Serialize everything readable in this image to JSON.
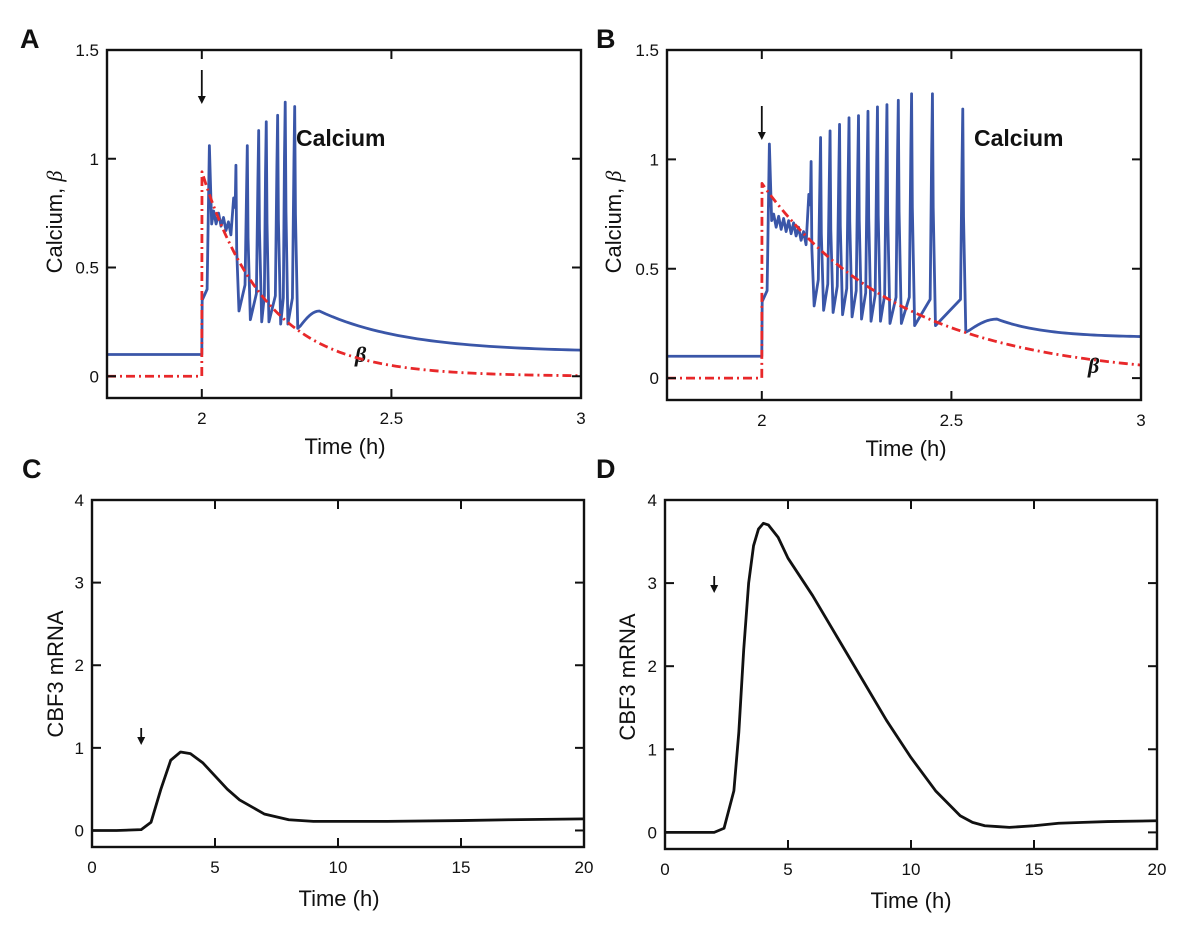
{
  "figure": {
    "panels": [
      {
        "letter": "A",
        "xlabel": "Time (h)",
        "ylabel": "Calcium, ",
        "ylabel_symbol": "β",
        "series_label": "Calcium",
        "beta_label": "β"
      },
      {
        "letter": "B",
        "xlabel": "Time (h)",
        "ylabel": "Calcium, ",
        "ylabel_symbol": "β",
        "series_label": "Calcium",
        "beta_label": "β"
      },
      {
        "letter": "C",
        "xlabel": "Time (h)",
        "ylabel": "CBF3 mRNA"
      },
      {
        "letter": "D",
        "xlabel": "Time (h)",
        "ylabel": "CBF3 mRNA"
      }
    ],
    "colors": {
      "calcium": "#3a56a8",
      "beta": "#e8282a",
      "mrna": "#111111",
      "axis": "#111111"
    }
  },
  "chart_data": [
    {
      "type": "line",
      "panel": "A",
      "xlabel": "Time (h)",
      "ylabel": "Calcium, β",
      "xlim": [
        1.75,
        3
      ],
      "ylim": [
        -0.1,
        1.5
      ],
      "xticks": [
        2,
        2.5,
        3
      ],
      "xtick_labels": [
        "2",
        "2.5",
        "3"
      ],
      "yticks": [
        0,
        0.5,
        1,
        1.5
      ],
      "ytick_labels": [
        "0",
        "0.5",
        "1",
        "1.5"
      ],
      "stimulus_time": 2.0,
      "annotations": [
        "Calcium",
        "β"
      ],
      "series": [
        {
          "name": "Calcium",
          "style": "solid",
          "baseline": 0.1,
          "onset": 2.0,
          "onset_value": 0.35,
          "spikes": [
            {
              "t": 2.02,
              "peak": 1.06,
              "trough": 0.7
            },
            {
              "t": 2.09,
              "peak": 0.97,
              "trough": 0.3
            },
            {
              "t": 2.12,
              "peak": 1.06,
              "trough": 0.26
            },
            {
              "t": 2.15,
              "peak": 1.13,
              "trough": 0.25
            },
            {
              "t": 2.17,
              "peak": 1.17,
              "trough": 0.25
            },
            {
              "t": 2.2,
              "peak": 1.2,
              "trough": 0.24
            },
            {
              "t": 2.22,
              "peak": 1.26,
              "trough": 0.24
            },
            {
              "t": 2.245,
              "peak": 1.24,
              "trough": 0.22
            }
          ],
          "plateau_wiggles": [
            0.73,
            0.72,
            0.7,
            0.68
          ],
          "post_bump": {
            "t": 2.31,
            "value": 0.3
          },
          "tail_end": 0.12
        },
        {
          "name": "β",
          "style": "dash-dot",
          "baseline": 0.0,
          "onset": 2.0,
          "peak": 0.94,
          "decay_tau": 0.17
        }
      ]
    },
    {
      "type": "line",
      "panel": "B",
      "xlabel": "Time (h)",
      "ylabel": "Calcium, β",
      "xlim": [
        1.75,
        3
      ],
      "ylim": [
        -0.1,
        1.5
      ],
      "xticks": [
        2,
        2.5,
        3
      ],
      "xtick_labels": [
        "2",
        "2.5",
        "3"
      ],
      "yticks": [
        0,
        0.5,
        1,
        1.5
      ],
      "ytick_labels": [
        "0",
        "0.5",
        "1",
        "1.5"
      ],
      "stimulus_time": 2.0,
      "annotations": [
        "Calcium",
        "β"
      ],
      "series": [
        {
          "name": "Calcium",
          "style": "solid",
          "baseline": 0.1,
          "onset": 2.0,
          "onset_value": 0.35,
          "spikes": [
            {
              "t": 2.02,
              "peak": 1.07,
              "trough": 0.72
            },
            {
              "t": 2.13,
              "peak": 0.99,
              "trough": 0.33
            },
            {
              "t": 2.155,
              "peak": 1.1,
              "trough": 0.31
            },
            {
              "t": 2.18,
              "peak": 1.13,
              "trough": 0.3
            },
            {
              "t": 2.205,
              "peak": 1.16,
              "trough": 0.29
            },
            {
              "t": 2.23,
              "peak": 1.19,
              "trough": 0.28
            },
            {
              "t": 2.255,
              "peak": 1.2,
              "trough": 0.27
            },
            {
              "t": 2.28,
              "peak": 1.22,
              "trough": 0.26
            },
            {
              "t": 2.305,
              "peak": 1.24,
              "trough": 0.26
            },
            {
              "t": 2.33,
              "peak": 1.25,
              "trough": 0.25
            },
            {
              "t": 2.36,
              "peak": 1.27,
              "trough": 0.25
            },
            {
              "t": 2.395,
              "peak": 1.3,
              "trough": 0.24
            },
            {
              "t": 2.45,
              "peak": 1.3,
              "trough": 0.24
            },
            {
              "t": 2.53,
              "peak": 1.23,
              "trough": 0.21
            }
          ],
          "plateau_wiggles": [
            0.72,
            0.71,
            0.7,
            0.69,
            0.68,
            0.66,
            0.64
          ],
          "post_bump": {
            "t": 2.62,
            "value": 0.27
          },
          "tail_end": 0.19
        },
        {
          "name": "β",
          "style": "dash-dot",
          "baseline": 0.0,
          "onset": 2.0,
          "peak": 0.89,
          "decay_tau": 0.37
        }
      ]
    },
    {
      "type": "line",
      "panel": "C",
      "xlabel": "Time (h)",
      "ylabel": "CBF3 mRNA",
      "xlim": [
        0,
        20
      ],
      "ylim": [
        -0.2,
        4
      ],
      "xticks": [
        0,
        5,
        10,
        15,
        20
      ],
      "xtick_labels": [
        "0",
        "5",
        "10",
        "15",
        "20"
      ],
      "yticks": [
        0,
        1,
        2,
        3,
        4
      ],
      "ytick_labels": [
        "0",
        "1",
        "2",
        "3",
        "4"
      ],
      "stimulus_time": 2.0,
      "series": [
        {
          "name": "CBF3 mRNA",
          "x": [
            0,
            1,
            2,
            2.4,
            2.8,
            3.2,
            3.6,
            4.0,
            4.5,
            5.0,
            5.5,
            6,
            7,
            8,
            9,
            10,
            12,
            15,
            17,
            20
          ],
          "y": [
            0.0,
            0.0,
            0.01,
            0.1,
            0.5,
            0.85,
            0.95,
            0.93,
            0.82,
            0.66,
            0.5,
            0.37,
            0.2,
            0.13,
            0.11,
            0.11,
            0.11,
            0.12,
            0.13,
            0.14
          ]
        }
      ]
    },
    {
      "type": "line",
      "panel": "D",
      "xlabel": "Time (h)",
      "ylabel": "CBF3 mRNA",
      "xlim": [
        0,
        20
      ],
      "ylim": [
        -0.2,
        4
      ],
      "xticks": [
        0,
        5,
        10,
        15,
        20
      ],
      "xtick_labels": [
        "0",
        "5",
        "10",
        "15",
        "20"
      ],
      "yticks": [
        0,
        1,
        2,
        3,
        4
      ],
      "ytick_labels": [
        "0",
        "1",
        "2",
        "3",
        "4"
      ],
      "stimulus_time": 2.0,
      "series": [
        {
          "name": "CBF3 mRNA",
          "x": [
            0,
            1,
            2,
            2.4,
            2.8,
            3.0,
            3.2,
            3.4,
            3.6,
            3.8,
            4.0,
            4.2,
            4.6,
            5,
            6,
            7,
            8,
            9,
            10,
            11,
            12,
            12.5,
            13,
            13.5,
            14,
            15,
            16,
            17,
            18,
            20
          ],
          "y": [
            0.0,
            0.0,
            0.0,
            0.05,
            0.5,
            1.2,
            2.2,
            3.0,
            3.45,
            3.65,
            3.72,
            3.7,
            3.55,
            3.3,
            2.85,
            2.35,
            1.85,
            1.35,
            0.9,
            0.5,
            0.2,
            0.12,
            0.08,
            0.07,
            0.06,
            0.08,
            0.11,
            0.12,
            0.13,
            0.14
          ]
        }
      ]
    }
  ]
}
